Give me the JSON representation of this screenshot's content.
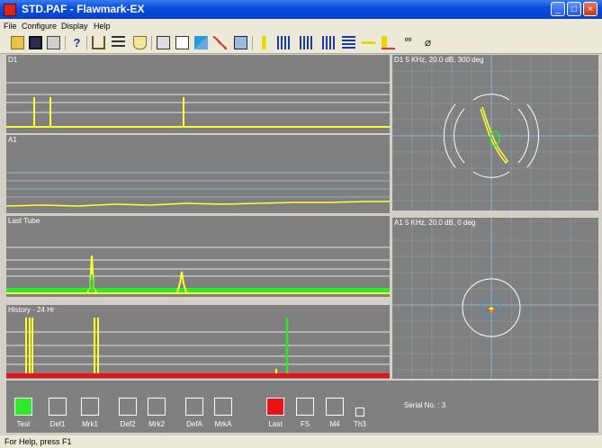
{
  "window": {
    "title": "STD.PAF - Flawmark-EX"
  },
  "menu": {
    "items": [
      "File",
      "Configure",
      "Display",
      "Help"
    ]
  },
  "toolbar": {
    "buttons": [
      "open-icon",
      "save-icon",
      "print-icon",
      "help-icon",
      "tools-icon",
      "list-icon",
      "flask-icon",
      "view-icon",
      "page-icon",
      "zoom-in-icon",
      "zoom-out-icon",
      "window-icon",
      "bar1-icon",
      "bar2-icon",
      "bar3-icon",
      "bars-icon",
      "line-icon",
      "mark-icon",
      "scissors-icon",
      "eraser-icon"
    ]
  },
  "panels": {
    "d1": {
      "label": "D1"
    },
    "a1": {
      "label": "A1"
    },
    "last_tube": {
      "label": "Last Tube"
    },
    "history": {
      "label": "History - 24 Hr"
    },
    "d1_lissajous": {
      "label": "D1  5 KHz,  20.0 dB,  300 deg"
    },
    "a1_lissajous": {
      "label": "A1  5 KHz,  20.0 dB,    0 deg"
    }
  },
  "controls": {
    "items": [
      {
        "label": "Test",
        "state": "green"
      },
      {
        "label": "Def1",
        "state": "off"
      },
      {
        "label": "Mrk1",
        "state": "off"
      },
      {
        "label": "Def2",
        "state": "off"
      },
      {
        "label": "Mrk2",
        "state": "off"
      },
      {
        "label": "DefA",
        "state": "off"
      },
      {
        "label": "MrkA",
        "state": "off"
      },
      {
        "label": "Last",
        "state": "red"
      },
      {
        "label": "FS",
        "state": "off"
      },
      {
        "label": "M4",
        "state": "off"
      },
      {
        "label": "Th3",
        "state": "off"
      }
    ],
    "serial_text": "Serial No. : 3"
  },
  "status": {
    "text": "For Help, press F1"
  },
  "colors": {
    "trace": "#ffff33",
    "green": "#2ee82e",
    "red": "#ee1111",
    "panel": "#808080",
    "grid": "#8ab4c4"
  }
}
